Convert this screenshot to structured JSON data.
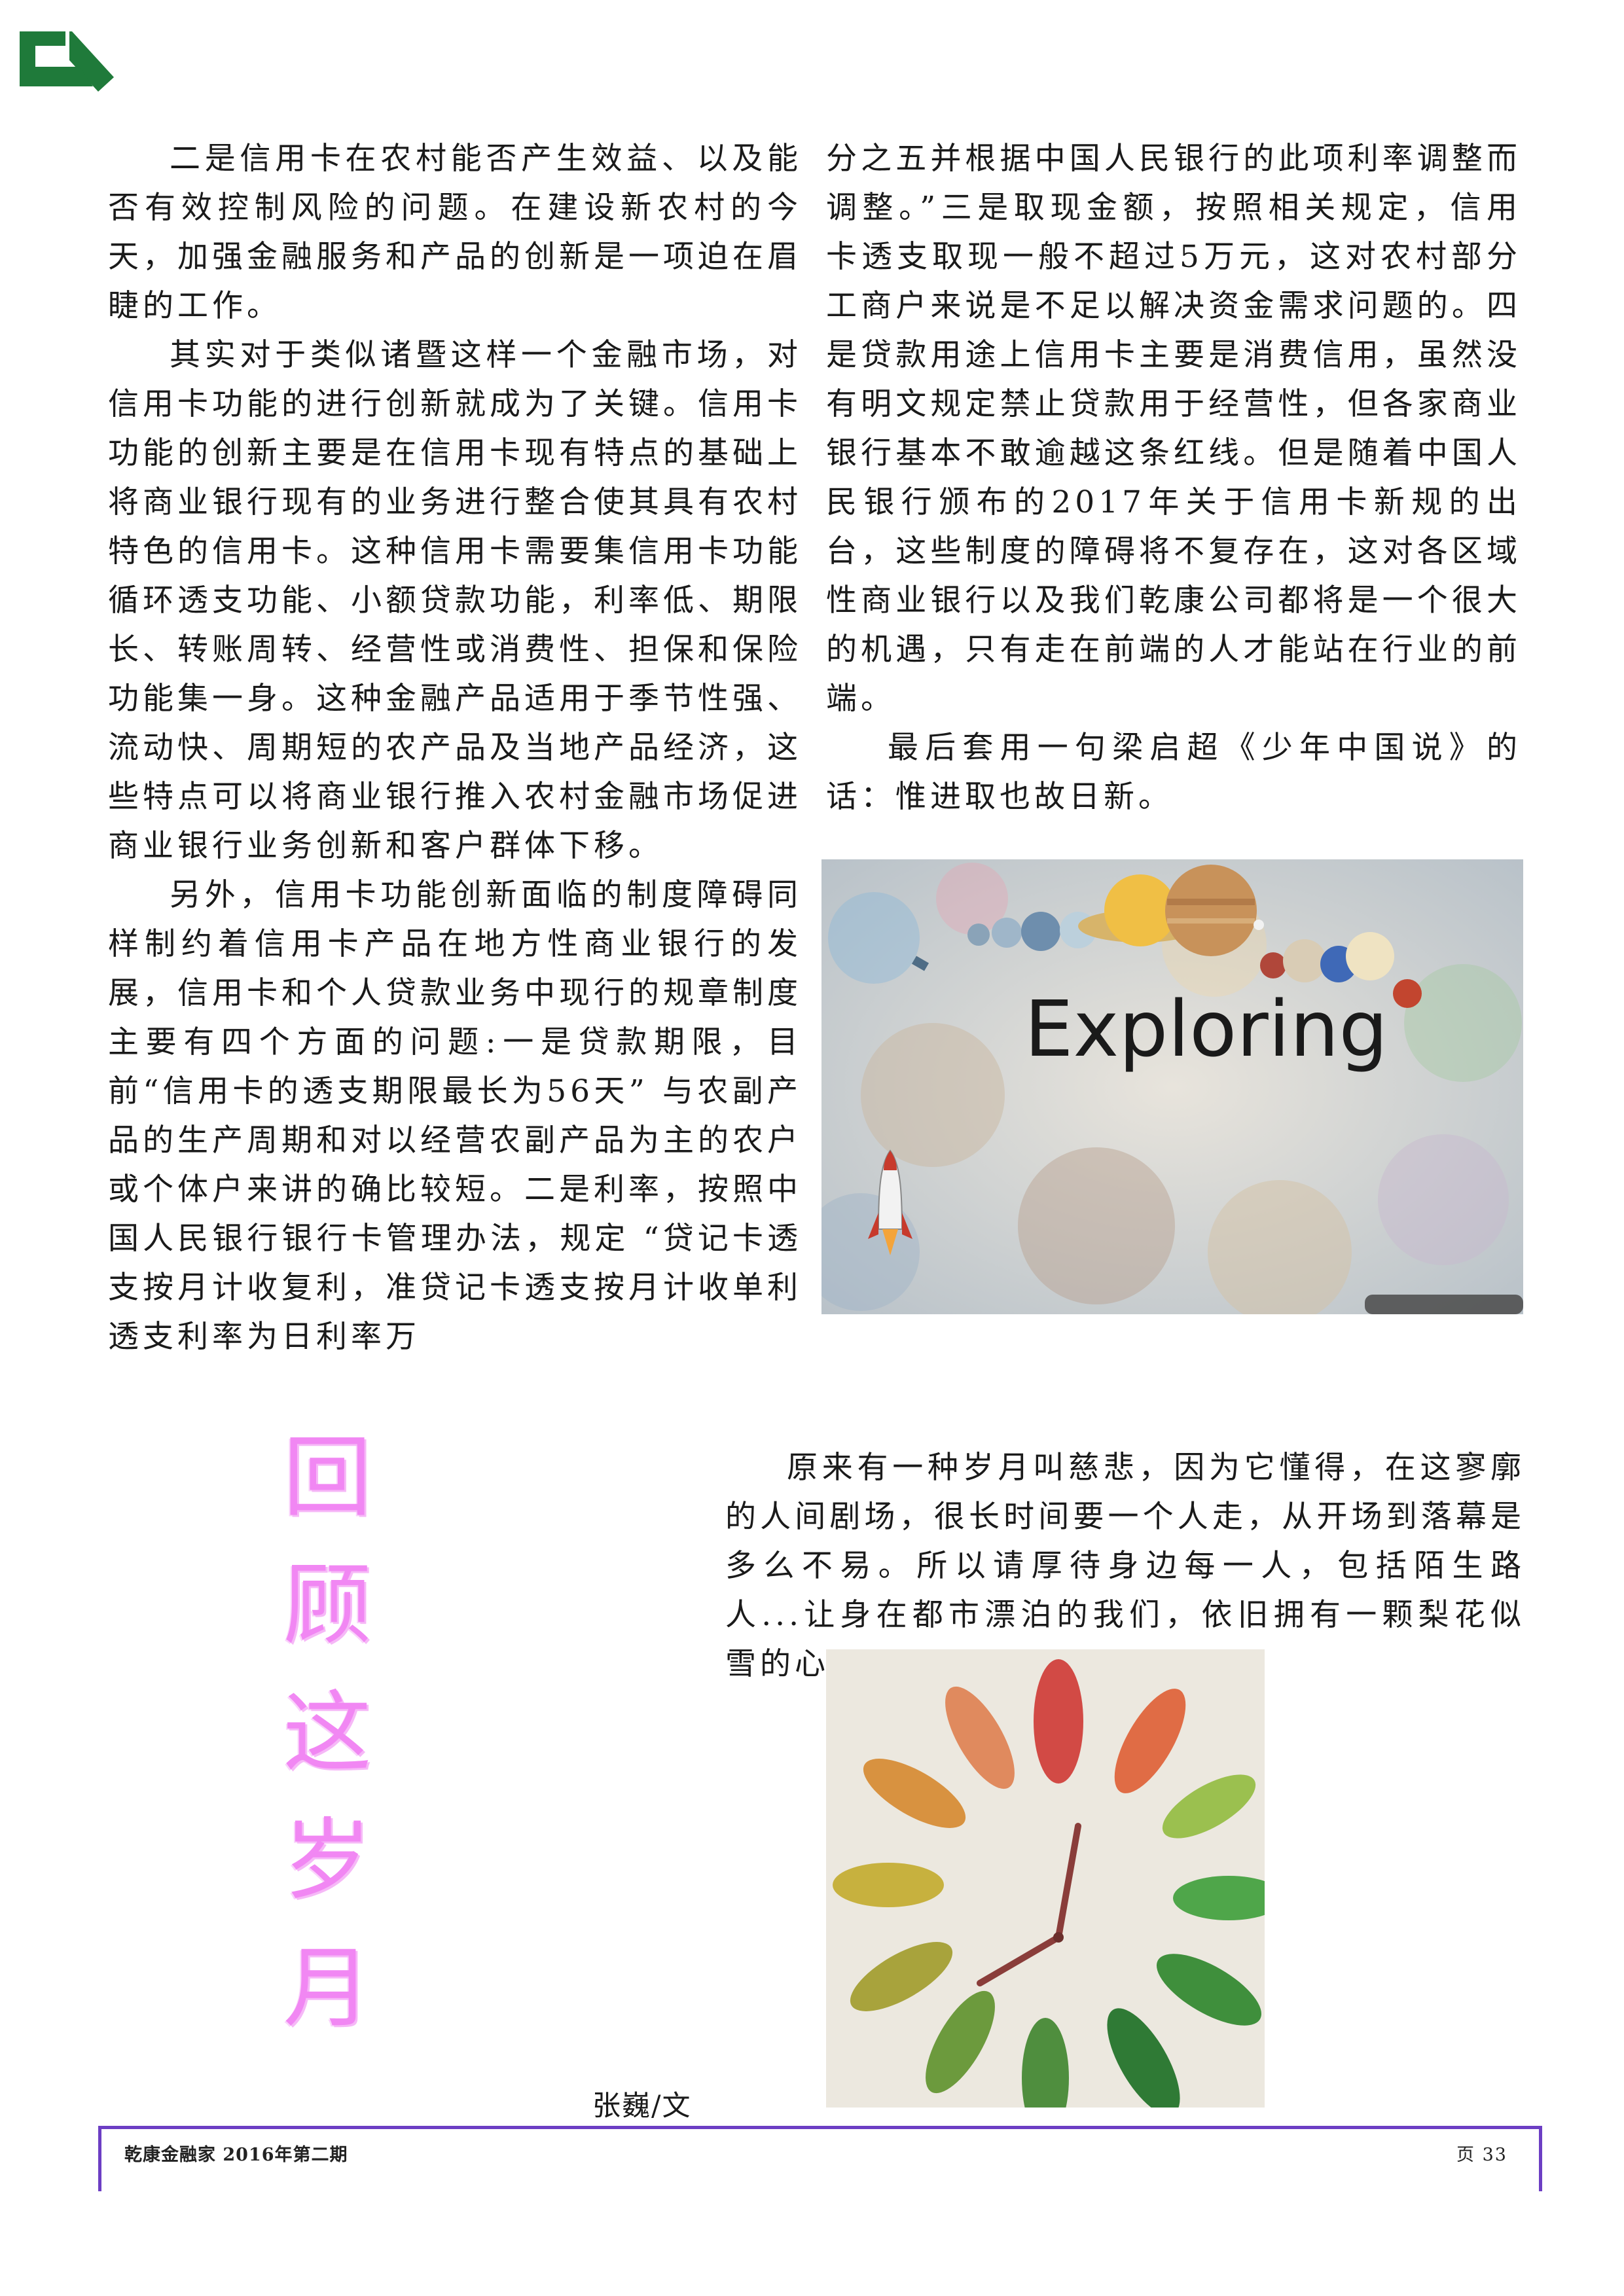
{
  "colors": {
    "logo": "#1f7a3a",
    "title_pink": "#f07df2",
    "footer_rule": "#6c3ec4"
  },
  "left_column": {
    "paragraphs": [
      "二是信用卡在农村能否产生效益、以及能否有效控制风险的问题。在建设新农村的今天，加强金融服务和产品的创新是一项迫在眉睫的工作。",
      "其实对于类似诸暨这样一个金融市场，对信用卡功能的进行创新就成为了关键。信用卡功能的创新主要是在信用卡现有特点的基础上将商业银行现有的业务进行整合使其具有农村特色的信用卡。这种信用卡需要集信用卡功能循环透支功能、小额贷款功能，利率低、期限长、转账周转、经营性或消费性、担保和保险功能集一身。这种金融产品适用于季节性强、流动快、周期短的农产品及当地产品经济，这些特点可以将商业银行推入农村金融市场促进商业银行业务创新和客户群体下移。",
      "另外，信用卡功能创新面临的制度障碍同样制约着信用卡产品在地方性商业银行的发展，信用卡和个人贷款业务中现行的规章制度主要有四个方面的问题:一是贷款期限，目前“信用卡的透支期限最长为56天” 与农副产品的生产周期和对以经营农副产品为主的农户或个体户来讲的确比较短。二是利率，按照中国人民银行银行卡管理办法，规定 “贷记卡透支按月计收复利，准贷记卡透支按月计收单利透支利率为日利率万"
    ]
  },
  "right_column": {
    "paragraphs": [
      "分之五并根据中国人民银行的此项利率调整而调整。”三是取现金额，按照相关规定，信用卡透支取现一般不超过5万元，这对农村部分工商户来说是不足以解决资金需求问题的。四是贷款用途上信用卡主要是消费信用，虽然没有明文规定禁止贷款用于经营性，但各家商业银行基本不敢逾越这条红线。但是随着中国人民银行颁布的2017年关于信用卡新规的出台，这些制度的障碍将不复存在，这对各区域性商业银行以及我们乾康公司都将是一个很大的机遇，只有走在前端的人才能站在行业的前端。",
      "最后套用一句梁启超《少年中国说》的话：惟进取也故日新。"
    ]
  },
  "space_image": {
    "caption_text": "Exploring"
  },
  "vertical_title": [
    "回",
    "顾",
    "这",
    "岁",
    "月"
  ],
  "bottom_paragraph": "原来有一种岁月叫慈悲，因为它懂得，在这寥廓的人间剧场，很长时间要一个人走，从开场到落幕是多么不易。所以请厚待身边每一人，包括陌生路人...让身在都市漂泊的我们，依旧拥有一颗梨花似雪的心。",
  "author": "张巍/文",
  "footer": {
    "publication": "乾康金融家  2016年第二期",
    "page_label": "页 33"
  }
}
